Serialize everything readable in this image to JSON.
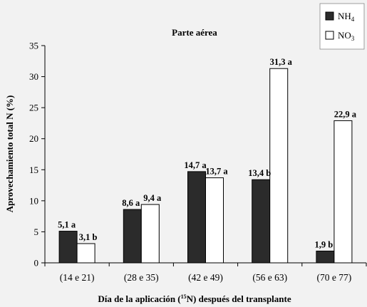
{
  "chart_data": {
    "type": "bar",
    "title": "Parte aérea",
    "ylabel": "Aprovechamiento total N (%)",
    "xlabel_parts": [
      "Día de la aplicación (",
      "15",
      "N) después del transplante"
    ],
    "categories": [
      "(14 e 21)",
      "(28 e 35)",
      "(42 e 49)",
      "(56 e 63)",
      "(70 e 77)"
    ],
    "ylim": [
      0,
      35
    ],
    "yticks": [
      0,
      5,
      10,
      15,
      20,
      25,
      30,
      35
    ],
    "grid": false,
    "legend_position": "top-right",
    "series": [
      {
        "name": "NH",
        "name_sub": "4",
        "color": "#2b2b2b",
        "values": [
          5.1,
          8.6,
          14.7,
          13.4,
          1.9
        ],
        "labels": [
          "5,1 a",
          "8,6 a",
          "14,7 a",
          "13,4 b",
          "1,9 b"
        ]
      },
      {
        "name": "NO",
        "name_sub": "3",
        "color": "#ffffff",
        "values": [
          3.1,
          9.4,
          13.7,
          31.3,
          22.9
        ],
        "labels": [
          "3,1 b",
          "9,4 a",
          "13,7 a",
          "31,3 a",
          "22,9 a"
        ]
      }
    ]
  }
}
